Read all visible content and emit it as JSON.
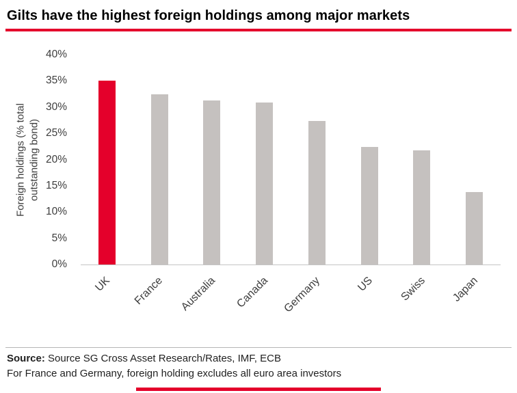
{
  "header": {
    "title": "Gilts have the highest foreign holdings among major markets"
  },
  "footer": {
    "source_label": "Source:",
    "source_text": " Source SG Cross Asset Research/Rates, IMF, ECB",
    "note": "For France and Germany, foreign holding excludes all euro area investors"
  },
  "colors": {
    "accent_red": "#e4002b",
    "bar_gray": "#c5c1bf",
    "axis_text": "#3d3d3d"
  },
  "chart_data": {
    "type": "bar",
    "categories": [
      "UK",
      "France",
      "Australia",
      "Canada",
      "Germany",
      "US",
      "Swiss",
      "Japan"
    ],
    "values": [
      35,
      32.5,
      31.3,
      30.9,
      27.3,
      22.4,
      21.8,
      13.8
    ],
    "highlight_category": "UK",
    "title": "",
    "xlabel": "",
    "ylabel": "Foreign holdings (% total outstanding bond)",
    "ylim": [
      0,
      40
    ],
    "ytick_step": 5,
    "ytick_suffix": "%",
    "grid": false,
    "legend": false
  }
}
